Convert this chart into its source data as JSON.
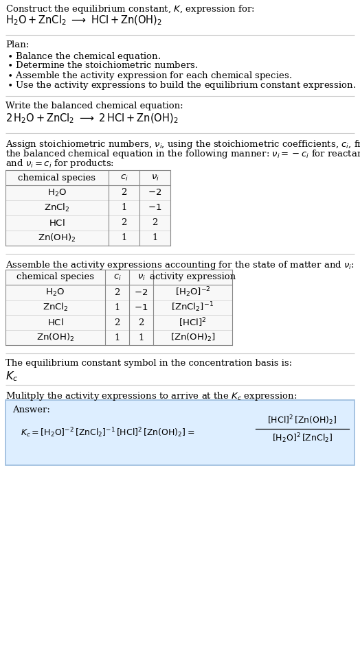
{
  "bg_color": "#ffffff",
  "answer_bg": "#ddeeff",
  "answer_border": "#aaccee",
  "separator_color": "#cccccc",
  "table_border": "#aaaaaa",
  "table_bg": "#ffffff",
  "text_color": "#000000",
  "font_size": 9.5
}
